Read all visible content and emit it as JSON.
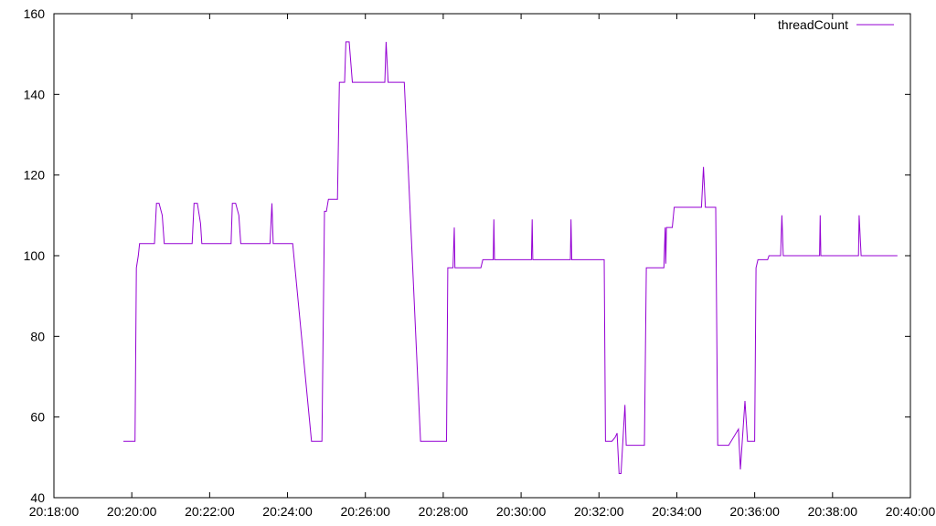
{
  "chart_data": {
    "type": "line",
    "title": "",
    "xlabel": "",
    "ylabel": "",
    "xlim": [
      "20:18:00",
      "20:40:00"
    ],
    "ylim": [
      40,
      160
    ],
    "grid": false,
    "legend_placement": "top-right",
    "x_ticks": [
      "20:18:00",
      "20:20:00",
      "20:22:00",
      "20:24:00",
      "20:26:00",
      "20:28:00",
      "20:30:00",
      "20:32:00",
      "20:34:00",
      "20:36:00",
      "20:38:00",
      "20:40:00"
    ],
    "y_ticks": [
      "40",
      "60",
      "80",
      "100",
      "120",
      "140",
      "160"
    ],
    "series": [
      {
        "name": "threadCount",
        "color": "#9400d3",
        "points": [
          [
            "20:19:47",
            54
          ],
          [
            "20:20:05",
            54
          ],
          [
            "20:20:07",
            97
          ],
          [
            "20:20:10",
            100
          ],
          [
            "20:20:12",
            103
          ],
          [
            "20:20:35",
            103
          ],
          [
            "20:20:38",
            113
          ],
          [
            "20:20:42",
            113
          ],
          [
            "20:20:47",
            110
          ],
          [
            "20:20:50",
            103
          ],
          [
            "20:21:33",
            103
          ],
          [
            "20:21:36",
            113
          ],
          [
            "20:21:41",
            113
          ],
          [
            "20:21:46",
            108
          ],
          [
            "20:21:48",
            103
          ],
          [
            "20:22:33",
            103
          ],
          [
            "20:22:35",
            113
          ],
          [
            "20:22:40",
            113
          ],
          [
            "20:22:45",
            110
          ],
          [
            "20:22:48",
            103
          ],
          [
            "20:23:33",
            103
          ],
          [
            "20:23:36",
            113
          ],
          [
            "20:23:38",
            103
          ],
          [
            "20:24:08",
            103
          ],
          [
            "20:24:37",
            54
          ],
          [
            "20:24:53",
            54
          ],
          [
            "20:24:57",
            111
          ],
          [
            "20:25:00",
            111
          ],
          [
            "20:25:03",
            114
          ],
          [
            "20:25:17",
            114
          ],
          [
            "20:25:20",
            143
          ],
          [
            "20:25:28",
            143
          ],
          [
            "20:25:30",
            153
          ],
          [
            "20:25:35",
            153
          ],
          [
            "20:25:40",
            143
          ],
          [
            "20:26:30",
            143
          ],
          [
            "20:26:32",
            153
          ],
          [
            "20:26:35",
            143
          ],
          [
            "20:27:00",
            143
          ],
          [
            "20:27:25",
            54
          ],
          [
            "20:28:05",
            54
          ],
          [
            "20:28:07",
            97
          ],
          [
            "20:28:15",
            97
          ],
          [
            "20:28:17",
            107
          ],
          [
            "20:28:18",
            97
          ],
          [
            "20:28:58",
            97
          ],
          [
            "20:29:01",
            99
          ],
          [
            "20:29:17",
            99
          ],
          [
            "20:29:18",
            109
          ],
          [
            "20:29:19",
            99
          ],
          [
            "20:30:16",
            99
          ],
          [
            "20:30:17",
            109
          ],
          [
            "20:30:18",
            99
          ],
          [
            "20:31:16",
            99
          ],
          [
            "20:31:17",
            109
          ],
          [
            "20:31:18",
            99
          ],
          [
            "20:32:08",
            99
          ],
          [
            "20:32:10",
            54
          ],
          [
            "20:32:20",
            54
          ],
          [
            "20:32:25",
            55
          ],
          [
            "20:32:28",
            56
          ],
          [
            "20:32:31",
            46
          ],
          [
            "20:32:34",
            46
          ],
          [
            "20:32:40",
            63
          ],
          [
            "20:32:42",
            53
          ],
          [
            "20:33:10",
            53
          ],
          [
            "20:33:13",
            97
          ],
          [
            "20:33:40",
            97
          ],
          [
            "20:33:42",
            107
          ],
          [
            "20:33:43",
            98
          ],
          [
            "20:33:44",
            107
          ],
          [
            "20:33:53",
            107
          ],
          [
            "20:33:56",
            112
          ],
          [
            "20:34:38",
            112
          ],
          [
            "20:34:41",
            122
          ],
          [
            "20:34:44",
            112
          ],
          [
            "20:35:00",
            112
          ],
          [
            "20:35:03",
            53
          ],
          [
            "20:35:20",
            53
          ],
          [
            "20:35:35",
            57
          ],
          [
            "20:35:38",
            47
          ],
          [
            "20:35:45",
            64
          ],
          [
            "20:35:49",
            54
          ],
          [
            "20:36:00",
            54
          ],
          [
            "20:36:02",
            97
          ],
          [
            "20:36:05",
            99
          ],
          [
            "20:36:20",
            99
          ],
          [
            "20:36:22",
            100
          ],
          [
            "20:36:40",
            100
          ],
          [
            "20:36:42",
            110
          ],
          [
            "20:36:44",
            100
          ],
          [
            "20:37:40",
            100
          ],
          [
            "20:37:41",
            110
          ],
          [
            "20:37:42",
            100
          ],
          [
            "20:38:40",
            100
          ],
          [
            "20:38:41",
            110
          ],
          [
            "20:38:44",
            100
          ],
          [
            "20:39:40",
            100
          ]
        ]
      }
    ]
  }
}
